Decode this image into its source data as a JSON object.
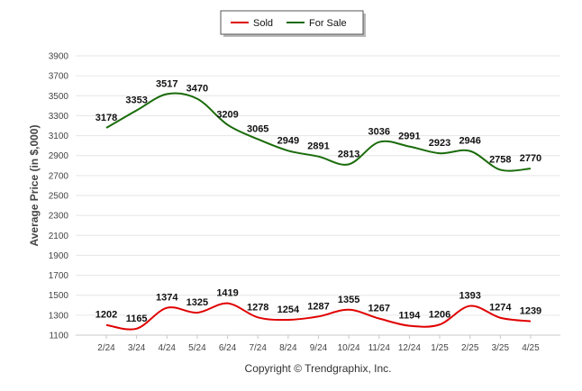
{
  "chart_data": {
    "type": "line",
    "title": "",
    "xlabel": "",
    "ylabel": "Average Price (in $,000)",
    "categories": [
      "2/24",
      "3/24",
      "4/24",
      "5/24",
      "6/24",
      "7/24",
      "8/24",
      "9/24",
      "10/24",
      "11/24",
      "12/24",
      "1/25",
      "2/25",
      "3/25",
      "4/25"
    ],
    "series": [
      {
        "name": "Sold",
        "color": "#e00000",
        "values": [
          1202,
          1165,
          1374,
          1325,
          1419,
          1278,
          1254,
          1287,
          1355,
          1267,
          1194,
          1206,
          1393,
          1274,
          1239
        ]
      },
      {
        "name": "For Sale",
        "color": "#1a6b0a",
        "values": [
          3178,
          3353,
          3517,
          3470,
          3209,
          3065,
          2949,
          2891,
          2813,
          3036,
          2991,
          2923,
          2946,
          2758,
          2770
        ]
      }
    ],
    "ylim": [
      1100,
      3900
    ],
    "yticks": [
      1100,
      1300,
      1500,
      1700,
      1900,
      2100,
      2300,
      2500,
      2700,
      2900,
      3100,
      3300,
      3500,
      3700,
      3900
    ],
    "grid": true,
    "legend": "top-center",
    "footer": "Copyright © Trendgraphix, Inc."
  }
}
